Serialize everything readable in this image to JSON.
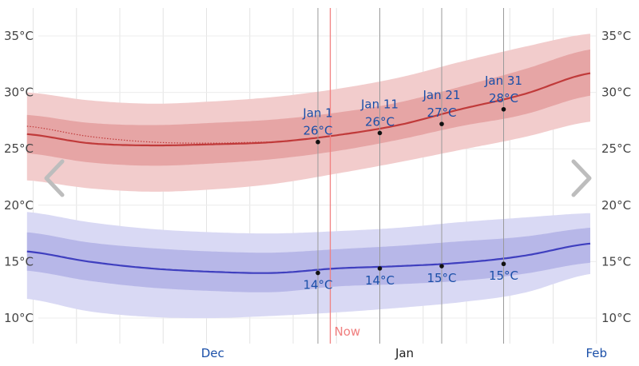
{
  "chart_data": {
    "type": "area",
    "title": "",
    "xlabel": "",
    "ylabel": "",
    "ylim": [
      8.9,
      38.3
    ],
    "y_ticks": [
      "10°C",
      "15°C",
      "20°C",
      "25°C",
      "30°C",
      "35°C"
    ],
    "y_tick_values": [
      10,
      15,
      20,
      25,
      30,
      35
    ],
    "x_tick_labels": [
      {
        "label": "Dec",
        "day": 1
      },
      {
        "label": "Jan",
        "day": 32
      },
      {
        "label": "Feb",
        "day": 63
      }
    ],
    "x_range_days": [
      -15,
      76
    ],
    "x_day_reference": "Nov 30",
    "grid": true,
    "now": {
      "label": "Now",
      "day": 34
    },
    "series": [
      {
        "name": "",
        "color": "#c03a3a",
        "band_outer_color": "#f2cccc",
        "band_inner_color": "#e6a5a5",
        "days": [
          -15,
          -5,
          5,
          15,
          25,
          35,
          45,
          55,
          65,
          76
        ],
        "median": [
          26.3,
          25.5,
          25.3,
          25.4,
          25.6,
          26.2,
          27.1,
          28.5,
          29.8,
          31.7
        ],
        "p25": [
          24.6,
          23.8,
          23.5,
          23.7,
          24.1,
          24.8,
          25.8,
          27.0,
          28.0,
          29.7
        ],
        "p75": [
          28.0,
          27.3,
          27.1,
          27.3,
          27.6,
          28.2,
          29.1,
          30.5,
          32.0,
          33.8
        ],
        "p10": [
          22.2,
          21.5,
          21.2,
          21.4,
          21.9,
          22.8,
          23.8,
          24.9,
          26.0,
          27.4
        ],
        "p90": [
          30.0,
          29.3,
          29.0,
          29.2,
          29.6,
          30.3,
          31.3,
          32.7,
          34.0,
          35.2
        ],
        "forecast_days": [
          -15,
          -5,
          5,
          15,
          24
        ],
        "forecast": [
          27.0,
          26.1,
          25.6,
          25.5,
          25.6
        ]
      },
      {
        "name": "",
        "color": "#3f3fbf",
        "band_outer_color": "#d9d9f4",
        "band_inner_color": "#b7b7e8",
        "days": [
          -15,
          -5,
          5,
          15,
          25,
          35,
          45,
          55,
          65,
          76
        ],
        "median": [
          15.9,
          15.0,
          14.4,
          14.1,
          14.0,
          14.4,
          14.6,
          14.9,
          15.5,
          16.6
        ],
        "p25": [
          14.2,
          13.3,
          12.7,
          12.4,
          12.3,
          12.8,
          13.0,
          13.3,
          13.9,
          14.9
        ],
        "p75": [
          17.6,
          16.7,
          16.2,
          15.9,
          15.8,
          16.1,
          16.4,
          16.8,
          17.2,
          18.0
        ],
        "p10": [
          11.7,
          10.6,
          10.1,
          10.0,
          10.2,
          10.5,
          10.9,
          11.4,
          12.2,
          13.9
        ],
        "p90": [
          19.4,
          18.5,
          17.9,
          17.6,
          17.5,
          17.7,
          18.0,
          18.5,
          18.9,
          19.3
        ]
      }
    ],
    "annotations_high": [
      {
        "date": "Jan 1",
        "value": "26°C",
        "day": 32,
        "temp": 25.6
      },
      {
        "date": "Jan 11",
        "value": "26°C",
        "day": 42,
        "temp": 26.4
      },
      {
        "date": "Jan 21",
        "value": "27°C",
        "day": 52,
        "temp": 27.2
      },
      {
        "date": "Jan 31",
        "value": "28°C",
        "day": 62,
        "temp": 28.5
      }
    ],
    "annotations_low": [
      {
        "value": "14°C",
        "day": 32,
        "temp": 14.0
      },
      {
        "value": "14°C",
        "day": 42,
        "temp": 14.4
      },
      {
        "value": "15°C",
        "day": 52,
        "temp": 14.6
      },
      {
        "value": "15°C",
        "day": 62,
        "temp": 14.8
      }
    ]
  },
  "nav": {
    "prev_icon": "chevron-left-icon",
    "next_icon": "chevron-right-icon"
  }
}
